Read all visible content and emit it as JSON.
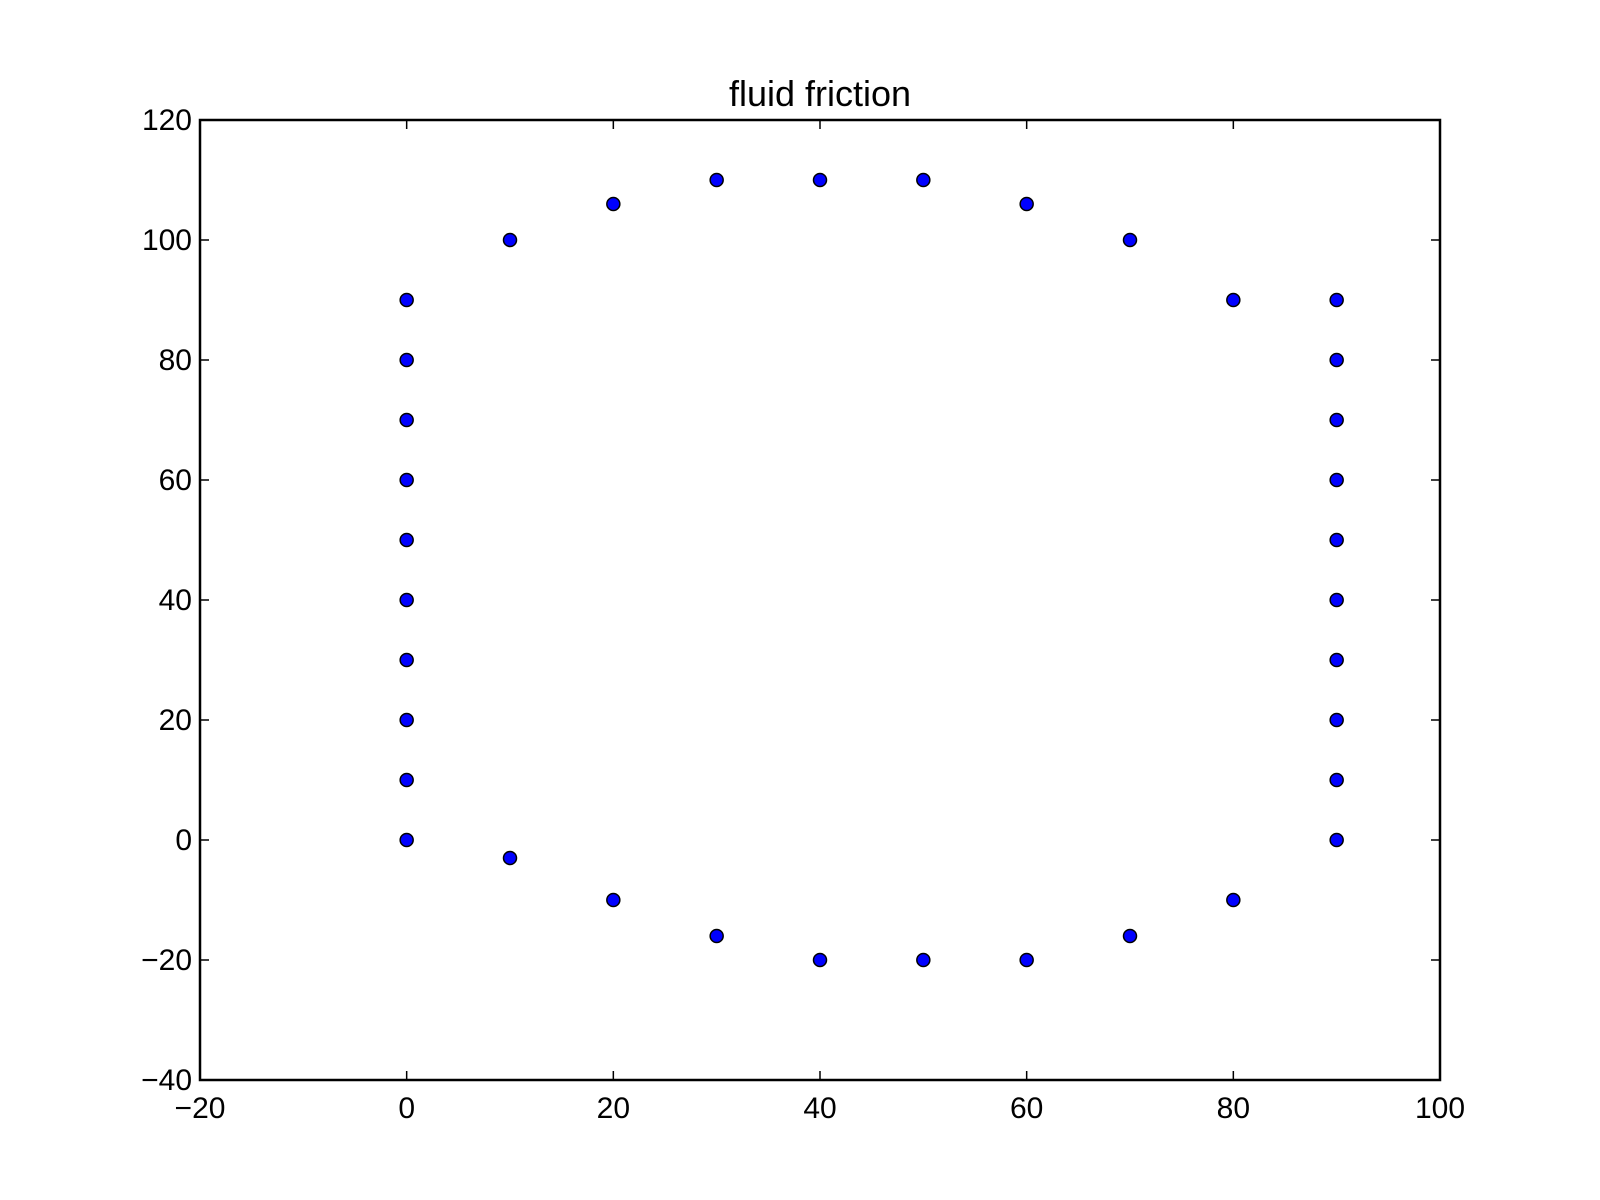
{
  "chart_data": {
    "type": "scatter",
    "title": "fluid friction",
    "xlabel": "",
    "ylabel": "",
    "xlim": [
      -20,
      100
    ],
    "ylim": [
      -40,
      120
    ],
    "xticks": [
      -20,
      0,
      20,
      40,
      60,
      80,
      100
    ],
    "yticks": [
      -40,
      -20,
      0,
      20,
      40,
      60,
      80,
      100,
      120
    ],
    "xtick_labels": [
      "−20",
      "0",
      "20",
      "40",
      "60",
      "80",
      "100"
    ],
    "ytick_labels": [
      "−40",
      "−20",
      "0",
      "20",
      "40",
      "60",
      "80",
      "100",
      "120"
    ],
    "grid": false,
    "marker_color": "#0000ff",
    "series": [
      {
        "points": [
          [
            0,
            0
          ],
          [
            0,
            10
          ],
          [
            0,
            20
          ],
          [
            0,
            30
          ],
          [
            0,
            40
          ],
          [
            0,
            50
          ],
          [
            0,
            60
          ],
          [
            0,
            70
          ],
          [
            0,
            80
          ],
          [
            0,
            90
          ],
          [
            10,
            100
          ],
          [
            20,
            106
          ],
          [
            30,
            110
          ],
          [
            40,
            110
          ],
          [
            50,
            110
          ],
          [
            60,
            106
          ],
          [
            70,
            100
          ],
          [
            80,
            90
          ],
          [
            90,
            90
          ],
          [
            90,
            80
          ],
          [
            90,
            70
          ],
          [
            90,
            60
          ],
          [
            90,
            50
          ],
          [
            90,
            40
          ],
          [
            90,
            30
          ],
          [
            90,
            20
          ],
          [
            90,
            10
          ],
          [
            90,
            0
          ],
          [
            80,
            -10
          ],
          [
            70,
            -16
          ],
          [
            60,
            -20
          ],
          [
            50,
            -20
          ],
          [
            40,
            -20
          ],
          [
            30,
            -16
          ],
          [
            20,
            -10
          ],
          [
            10,
            -3
          ]
        ]
      }
    ]
  }
}
